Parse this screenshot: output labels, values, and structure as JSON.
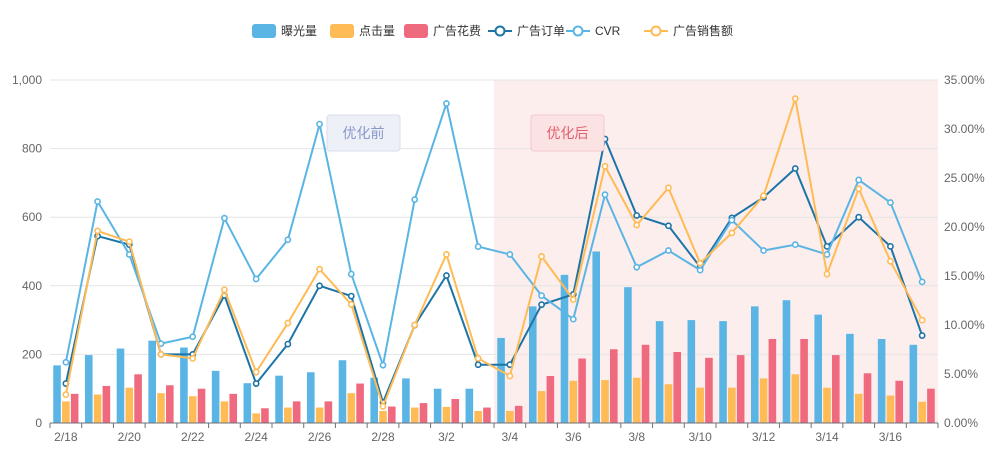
{
  "chart_data": {
    "type": "bar",
    "categories": [
      "2/18",
      "2/19",
      "2/20",
      "2/21",
      "2/22",
      "2/23",
      "2/24",
      "2/25",
      "2/26",
      "2/27",
      "2/28",
      "2/29",
      "3/2",
      "3/3",
      "3/4",
      "3/5",
      "3/6",
      "3/7",
      "3/8",
      "3/9",
      "3/10",
      "3/11",
      "3/12",
      "3/13",
      "3/14",
      "3/15",
      "3/16",
      "3/17"
    ],
    "x_tick_labels": [
      "2/18",
      "2/20",
      "2/22",
      "2/24",
      "2/26",
      "2/28",
      "3/2",
      "3/4",
      "3/6",
      "3/8",
      "3/10",
      "3/12",
      "3/14",
      "3/16"
    ],
    "y_left": {
      "min": 0,
      "max": 1000,
      "ticks": [
        "0",
        "200",
        "400",
        "600",
        "800",
        "1,000"
      ]
    },
    "y_right": {
      "min": 0,
      "max": 35,
      "ticks": [
        "0.00%",
        "5.00%",
        "10.00%",
        "15.00%",
        "20.00%",
        "25.00%",
        "30.00%",
        "35.00%"
      ]
    },
    "grid": true,
    "legend_position": "top-center",
    "series": [
      {
        "name": "曝光量",
        "type": "bar",
        "axis": "left",
        "color": "#5ab5e4",
        "values": [
          168,
          198,
          217,
          240,
          220,
          152,
          116,
          138,
          148,
          183,
          132,
          130,
          100,
          100,
          248,
          340,
          432,
          500,
          396,
          297,
          300,
          297,
          340,
          358,
          316,
          260,
          245,
          228
        ]
      },
      {
        "name": "点击量",
        "type": "bar",
        "axis": "left",
        "color": "#ffbb55",
        "values": [
          63,
          83,
          103,
          87,
          78,
          63,
          28,
          45,
          45,
          87,
          35,
          45,
          47,
          35,
          35,
          93,
          123,
          125,
          132,
          113,
          103,
          103,
          130,
          142,
          103,
          85,
          80,
          62
        ]
      },
      {
        "name": "广告花费",
        "type": "bar",
        "axis": "left",
        "color": "#ef6a7e",
        "values": [
          85,
          108,
          142,
          110,
          100,
          85,
          43,
          63,
          63,
          115,
          48,
          58,
          70,
          45,
          50,
          137,
          188,
          215,
          228,
          207,
          190,
          198,
          245,
          245,
          198,
          145,
          123,
          100
        ]
      },
      {
        "name": "广告订单",
        "type": "line",
        "axis": "left",
        "color": "#1c74a7",
        "values": [
          115,
          545,
          520,
          200,
          200,
          372,
          115,
          230,
          400,
          370,
          60,
          285,
          430,
          170,
          170,
          345,
          375,
          828,
          605,
          575,
          455,
          598,
          658,
          742,
          515,
          600,
          515,
          255
        ]
      },
      {
        "name": "CVR",
        "type": "line",
        "axis": "right",
        "color": "#5ab5e4",
        "values": [
          6.2,
          22.6,
          17.2,
          8.1,
          8.8,
          20.9,
          14.7,
          18.7,
          30.5,
          15.2,
          5.9,
          22.8,
          32.6,
          18.0,
          17.2,
          13.0,
          10.6,
          23.3,
          15.9,
          17.6,
          15.6,
          20.7,
          17.6,
          18.2,
          17.2,
          24.8,
          22.5,
          14.4
        ]
      },
      {
        "name": "广告销售额",
        "type": "line",
        "axis": "right",
        "color": "#ffbb55",
        "values": [
          2.9,
          19.6,
          18.5,
          7.0,
          6.6,
          13.6,
          5.2,
          10.2,
          15.7,
          12.1,
          1.7,
          10.0,
          17.2,
          6.6,
          4.8,
          17.0,
          12.6,
          26.2,
          20.2,
          24.0,
          16.3,
          19.4,
          23.2,
          33.1,
          15.2,
          23.9,
          16.5,
          10.5
        ]
      }
    ],
    "annotations": [
      {
        "text": "优化前",
        "color": "#8898c8",
        "bg": "#eef0f8"
      },
      {
        "text": "优化后",
        "color": "#e0606e",
        "bg": "#fbe3e3",
        "region_start": "3/4",
        "region_end": "3/17",
        "region_color": "#fdeeee"
      }
    ]
  }
}
